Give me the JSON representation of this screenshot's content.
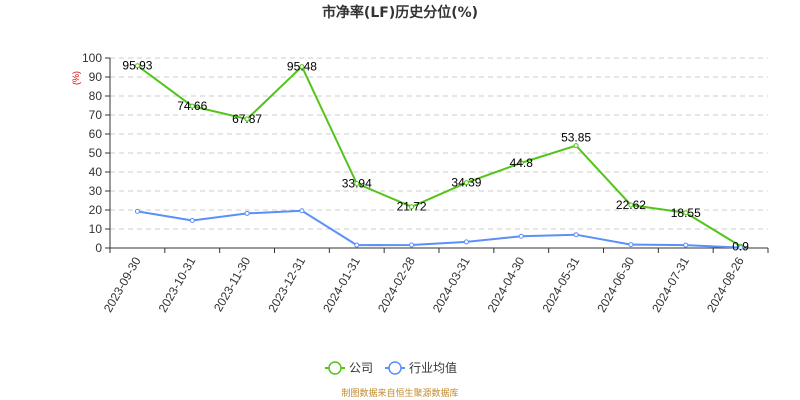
{
  "chart_data": {
    "type": "line",
    "title": "市净率(LF)历史分位(%)",
    "y_unit": "(%)",
    "categories": [
      "2023-09-30",
      "2023-10-31",
      "2023-11-30",
      "2023-12-31",
      "2024-01-31",
      "2024-02-28",
      "2024-03-31",
      "2024-04-30",
      "2024-05-31",
      "2024-06-30",
      "2024-07-31",
      "2024-08-26"
    ],
    "ylim": [
      0,
      100
    ],
    "yticks": [
      0,
      10,
      20,
      30,
      40,
      50,
      60,
      70,
      80,
      90,
      100
    ],
    "grid": true,
    "legend_position": "bottom",
    "series": [
      {
        "name": "公司",
        "color": "#52c41a",
        "values": [
          95.93,
          74.66,
          67.87,
          95.48,
          33.94,
          21.72,
          34.39,
          44.8,
          53.85,
          22.62,
          18.55,
          0.9
        ],
        "labels": [
          "95.93",
          "74.66",
          "67.87",
          "95.48",
          "33.94",
          "21.72",
          "34.39",
          "44.8",
          "53.85",
          "22.62",
          "18.55",
          "0.9"
        ]
      },
      {
        "name": "行业均值",
        "color": "#5b8ff9",
        "values": [
          19.3,
          14.5,
          18.2,
          19.6,
          1.5,
          1.6,
          3.2,
          6.2,
          7.0,
          1.8,
          1.5,
          0.2
        ]
      }
    ]
  },
  "footer": {
    "source": "制图数据来自恒生聚源数据库"
  }
}
